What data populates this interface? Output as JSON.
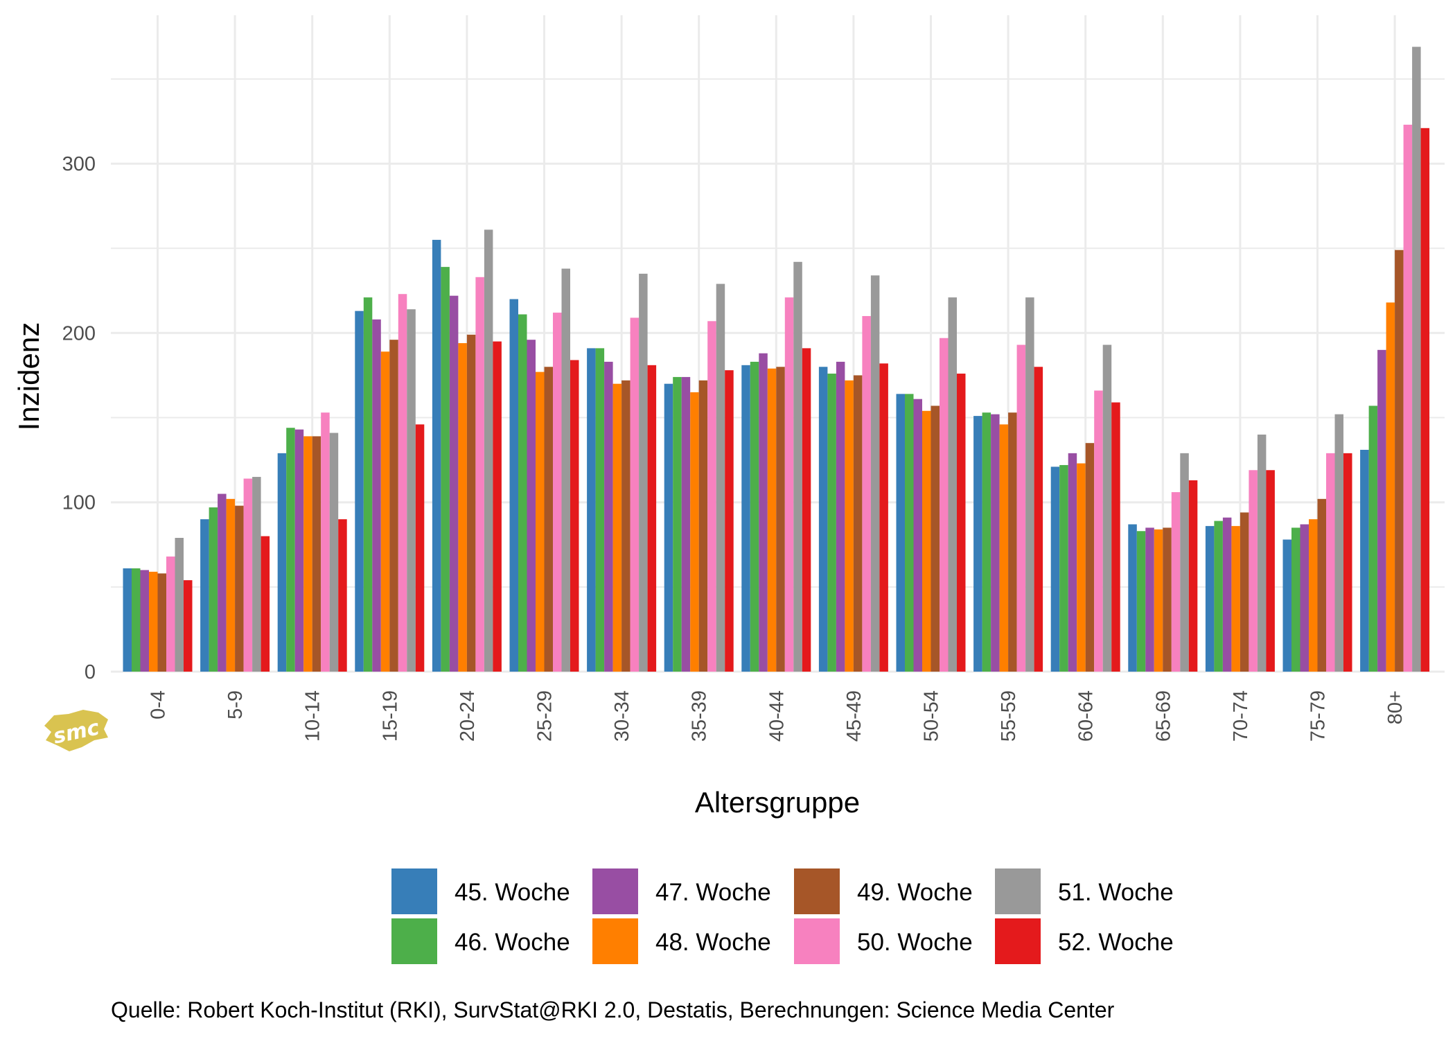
{
  "chart_data": {
    "type": "bar",
    "xlabel": "Altersgruppe",
    "ylabel": "Inzidenz",
    "ylim": [
      0,
      370
    ],
    "yticks": [
      0,
      100,
      200,
      300
    ],
    "grid": true,
    "legend_position": "bottom",
    "categories": [
      "0-4",
      "5-9",
      "10-14",
      "15-19",
      "20-24",
      "25-29",
      "30-34",
      "35-39",
      "40-44",
      "45-49",
      "50-54",
      "55-59",
      "60-64",
      "65-69",
      "70-74",
      "75-79",
      "80+"
    ],
    "series": [
      {
        "name": "45. Woche",
        "color": "#377eb8",
        "values": [
          61,
          90,
          129,
          213,
          255,
          220,
          191,
          170,
          181,
          180,
          164,
          151,
          121,
          87,
          86,
          78,
          131
        ]
      },
      {
        "name": "46. Woche",
        "color": "#4daf4a",
        "values": [
          61,
          97,
          144,
          221,
          239,
          211,
          191,
          174,
          183,
          176,
          164,
          153,
          122,
          83,
          89,
          85,
          157
        ]
      },
      {
        "name": "47. Woche",
        "color": "#984ea3",
        "values": [
          60,
          105,
          143,
          208,
          222,
          196,
          183,
          174,
          188,
          183,
          161,
          152,
          129,
          85,
          91,
          87,
          190
        ]
      },
      {
        "name": "48. Woche",
        "color": "#ff7f00",
        "values": [
          59,
          102,
          139,
          189,
          194,
          177,
          170,
          165,
          179,
          172,
          154,
          146,
          123,
          84,
          86,
          90,
          218
        ]
      },
      {
        "name": "49. Woche",
        "color": "#a65628",
        "values": [
          58,
          98,
          139,
          196,
          199,
          180,
          172,
          172,
          180,
          175,
          157,
          153,
          135,
          85,
          94,
          102,
          249
        ]
      },
      {
        "name": "50. Woche",
        "color": "#f781bf",
        "values": [
          68,
          114,
          153,
          223,
          233,
          212,
          209,
          207,
          221,
          210,
          197,
          193,
          166,
          106,
          119,
          129,
          323
        ]
      },
      {
        "name": "51. Woche",
        "color": "#999999",
        "values": [
          79,
          115,
          141,
          214,
          261,
          238,
          235,
          229,
          242,
          234,
          221,
          221,
          193,
          129,
          140,
          152,
          369
        ]
      },
      {
        "name": "52. Woche",
        "color": "#e41a1c",
        "values": [
          54,
          80,
          90,
          146,
          195,
          184,
          181,
          178,
          191,
          182,
          176,
          180,
          159,
          113,
          119,
          129,
          321
        ]
      }
    ]
  },
  "caption": "Quelle: Robert Koch-Institut (RKI), SurvStat@RKI 2.0, Destatis, Berechnungen: Science Media Center",
  "logo": {
    "text": "smc",
    "color": "#d9c350"
  }
}
